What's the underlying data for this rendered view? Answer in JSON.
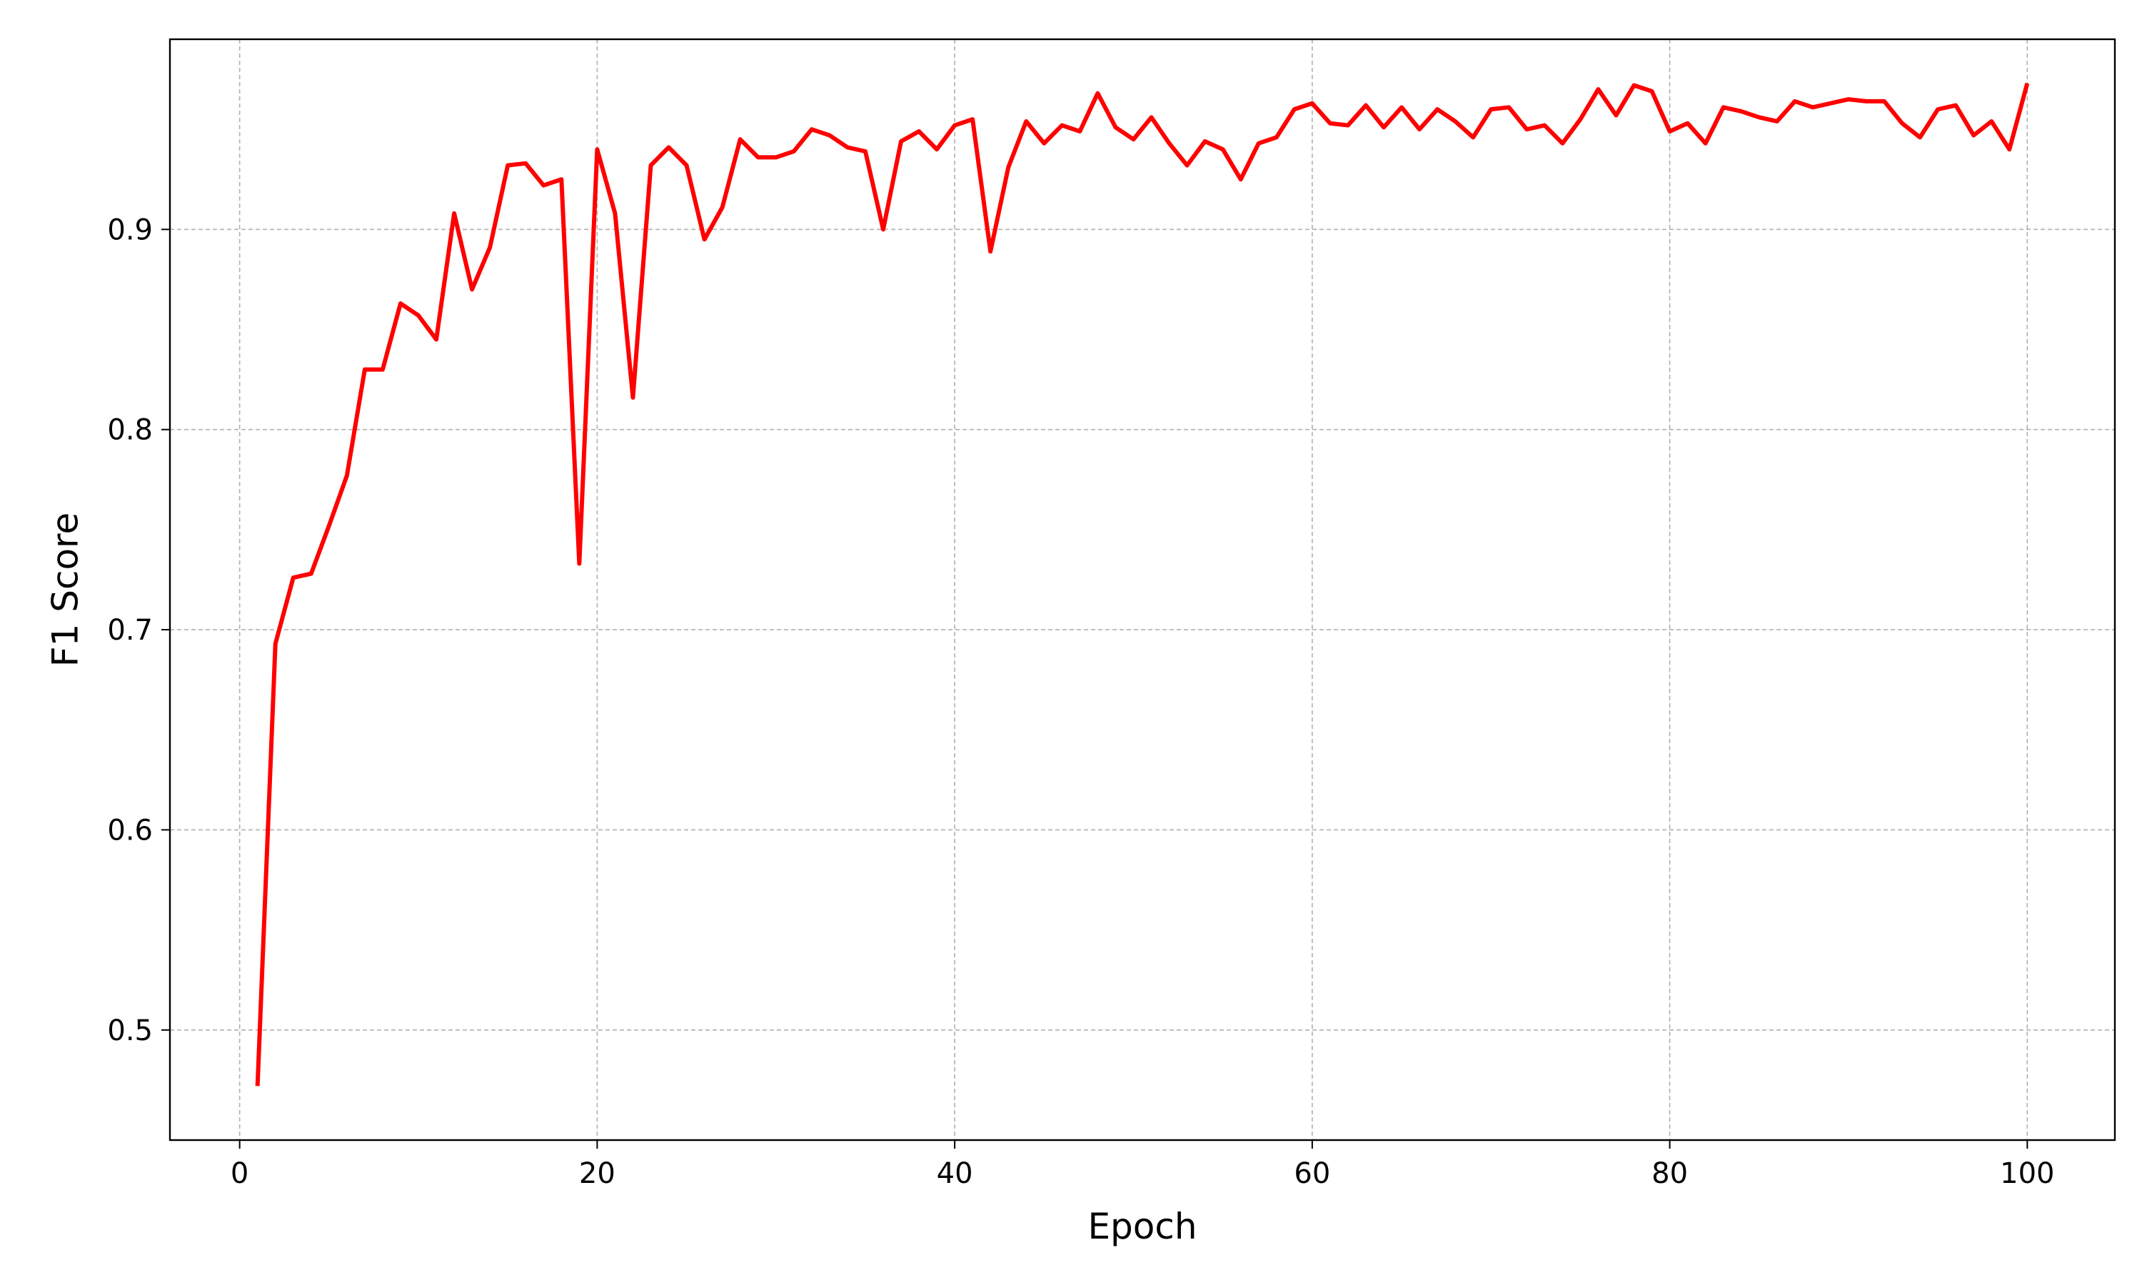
{
  "chart_data": {
    "type": "line",
    "title": "",
    "xlabel": "Epoch",
    "ylabel": "F1 Score",
    "xlim": [
      -3.9,
      104.9
    ],
    "ylim": [
      0.445,
      0.995
    ],
    "xticks": [
      0,
      20,
      40,
      60,
      80,
      100
    ],
    "yticks": [
      0.5,
      0.6,
      0.7,
      0.8,
      0.9
    ],
    "xtick_labels": [
      "0",
      "20",
      "40",
      "60",
      "80",
      "100"
    ],
    "ytick_labels": [
      "0.5",
      "0.6",
      "0.7",
      "0.8",
      "0.9"
    ],
    "grid": true,
    "legend": "none",
    "series": [
      {
        "color": "#ff0000",
        "x": [
          1,
          2,
          3,
          4,
          5,
          6,
          7,
          8,
          9,
          10,
          11,
          12,
          13,
          14,
          15,
          16,
          17,
          18,
          19,
          20,
          21,
          22,
          23,
          24,
          25,
          26,
          27,
          28,
          29,
          30,
          31,
          32,
          33,
          34,
          35,
          36,
          37,
          38,
          39,
          40,
          41,
          42,
          43,
          44,
          45,
          46,
          47,
          48,
          49,
          50,
          51,
          52,
          53,
          54,
          55,
          56,
          57,
          58,
          59,
          60,
          61,
          62,
          63,
          64,
          65,
          66,
          67,
          68,
          69,
          70,
          71,
          72,
          73,
          74,
          75,
          76,
          77,
          78,
          79,
          80,
          81,
          82,
          83,
          84,
          85,
          86,
          87,
          88,
          89,
          90,
          91,
          92,
          93,
          94,
          95,
          96,
          97,
          98,
          99,
          100
        ],
        "values": [
          0.472,
          0.693,
          0.726,
          0.728,
          0.752,
          0.777,
          0.83,
          0.83,
          0.863,
          0.857,
          0.845,
          0.908,
          0.87,
          0.891,
          0.932,
          0.933,
          0.922,
          0.925,
          0.733,
          0.94,
          0.908,
          0.816,
          0.932,
          0.941,
          0.932,
          0.895,
          0.911,
          0.945,
          0.936,
          0.936,
          0.939,
          0.95,
          0.947,
          0.941,
          0.939,
          0.9,
          0.944,
          0.949,
          0.94,
          0.952,
          0.955,
          0.889,
          0.931,
          0.954,
          0.943,
          0.952,
          0.949,
          0.968,
          0.951,
          0.945,
          0.956,
          0.943,
          0.932,
          0.944,
          0.94,
          0.925,
          0.943,
          0.946,
          0.96,
          0.963,
          0.953,
          0.952,
          0.962,
          0.951,
          0.961,
          0.95,
          0.96,
          0.954,
          0.946,
          0.96,
          0.961,
          0.95,
          0.952,
          0.943,
          0.955,
          0.97,
          0.957,
          0.972,
          0.969,
          0.949,
          0.953,
          0.943,
          0.961,
          0.959,
          0.956,
          0.954,
          0.964,
          0.961,
          0.963,
          0.965,
          0.964,
          0.964,
          0.953,
          0.946,
          0.96,
          0.962,
          0.947,
          0.954,
          0.94,
          0.973
        ]
      }
    ]
  }
}
